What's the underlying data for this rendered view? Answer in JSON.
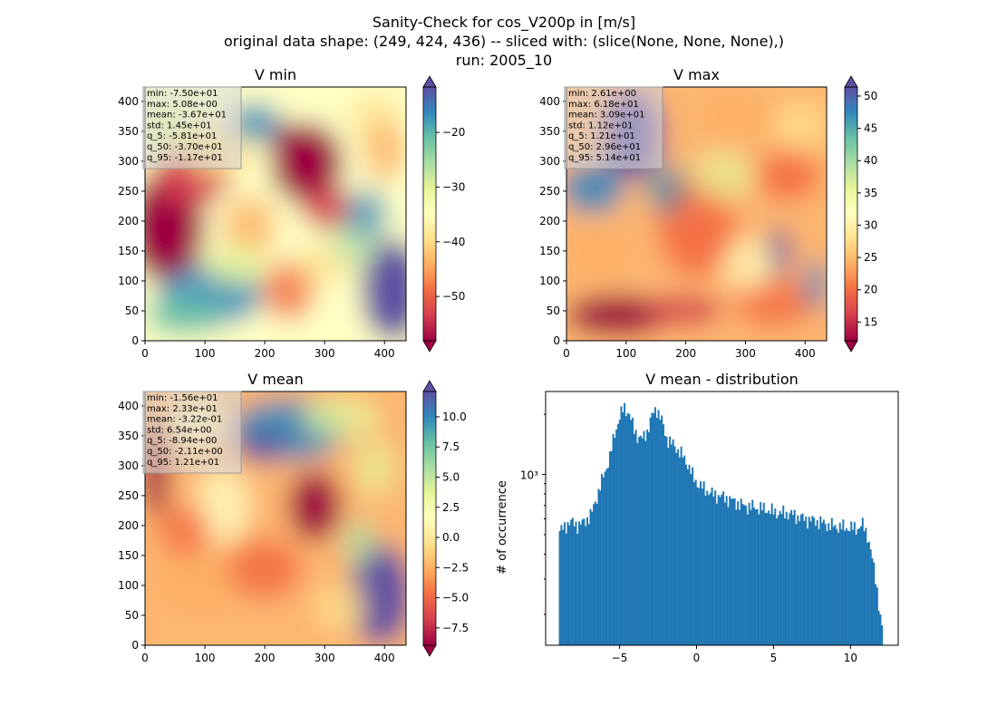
{
  "suptitle": [
    "Sanity-Check for cos_V200p in [m/s]",
    "original data shape: (249, 424, 436) -- sliced with: (slice(None, None, None),)",
    "run: 2005_10"
  ],
  "colormap": [
    "#9e0142",
    "#d53e4f",
    "#f46d43",
    "#fdae61",
    "#fee08b",
    "#ffffbf",
    "#e6f598",
    "#abdda4",
    "#66c2a5",
    "#3288bd",
    "#5e4fa2"
  ],
  "bar_color": "#1f77b4",
  "chart_data": [
    {
      "type": "heatmap",
      "title": "V min",
      "x_ticks": [
        0,
        100,
        200,
        300,
        400
      ],
      "y_ticks": [
        0,
        50,
        100,
        150,
        200,
        250,
        300,
        350,
        400
      ],
      "xlim": [
        0,
        436
      ],
      "ylim": [
        0,
        424
      ],
      "colorbar": {
        "range": [
          -58.1,
          -11.7
        ],
        "ticks": [
          -50,
          -40,
          -30,
          -20
        ],
        "tick_labels": [
          "−50",
          "−40",
          "−30",
          "−20"
        ],
        "extend": "both"
      },
      "stats": [
        "min: -7.50e+01",
        "max: 5.08e+00",
        "mean: -3.67e+01",
        "std: 1.45e+01",
        "q_5: -5.81e+01",
        "q_50: -3.70e+01",
        "q_95: -1.17e+01"
      ]
    },
    {
      "type": "heatmap",
      "title": "V max",
      "x_ticks": [
        0,
        100,
        200,
        300,
        400
      ],
      "y_ticks": [
        0,
        50,
        100,
        150,
        200,
        250,
        300,
        350,
        400
      ],
      "xlim": [
        0,
        436
      ],
      "ylim": [
        0,
        424
      ],
      "colorbar": {
        "range": [
          12.1,
          51.4
        ],
        "ticks": [
          15,
          20,
          25,
          30,
          35,
          40,
          45,
          50
        ],
        "tick_labels": [
          "15",
          "20",
          "25",
          "30",
          "35",
          "40",
          "45",
          "50"
        ],
        "extend": "both"
      },
      "stats": [
        "min: 2.61e+00",
        "max: 6.18e+01",
        "mean: 3.09e+01",
        "std: 1.12e+01",
        "q_5: 1.21e+01",
        "q_50: 2.96e+01",
        "q_95: 5.14e+01"
      ]
    },
    {
      "type": "heatmap",
      "title": "V mean",
      "x_ticks": [
        0,
        100,
        200,
        300,
        400
      ],
      "y_ticks": [
        0,
        50,
        100,
        150,
        200,
        250,
        300,
        350,
        400
      ],
      "xlim": [
        0,
        436
      ],
      "ylim": [
        0,
        424
      ],
      "colorbar": {
        "range": [
          -8.94,
          12.1
        ],
        "ticks": [
          -7.5,
          -5.0,
          -2.5,
          0.0,
          2.5,
          5.0,
          7.5,
          10.0
        ],
        "tick_labels": [
          "−7.5",
          "−5.0",
          "−2.5",
          "0.0",
          "2.5",
          "5.0",
          "7.5",
          "10.0"
        ],
        "extend": "both"
      },
      "stats": [
        "min: -1.56e+01",
        "max: 2.33e+01",
        "mean: -3.22e-01",
        "std: 6.54e+00",
        "q_5: -8.94e+00",
        "q_50: -2.11e+00",
        "q_95: 1.21e+01"
      ]
    },
    {
      "type": "bar",
      "title": "V mean - distribution",
      "ylabel": "# of occurrence",
      "y_scale": "log",
      "xlim": [
        -9.8,
        13.1
      ],
      "ylim": [
        140,
        2600
      ],
      "x_ticks": [
        -5,
        0,
        5,
        10
      ],
      "x_tick_labels": [
        "−5",
        "0",
        "5",
        "10"
      ],
      "y_ticks": [
        1000
      ],
      "y_tick_labels": [
        "10³"
      ],
      "bin_range": [
        -8.94,
        12.1
      ],
      "profile": [
        [
          -8.9,
          520
        ],
        [
          -8.6,
          540
        ],
        [
          -8.3,
          580
        ],
        [
          -8.0,
          570
        ],
        [
          -7.7,
          560
        ],
        [
          -7.4,
          570
        ],
        [
          -7.1,
          600
        ],
        [
          -6.8,
          640
        ],
        [
          -6.5,
          760
        ],
        [
          -6.2,
          900
        ],
        [
          -5.9,
          1050
        ],
        [
          -5.6,
          1250
        ],
        [
          -5.3,
          1600
        ],
        [
          -5.0,
          1950
        ],
        [
          -4.7,
          2150
        ],
        [
          -4.4,
          2050
        ],
        [
          -4.1,
          1700
        ],
        [
          -3.8,
          1550
        ],
        [
          -3.5,
          1500
        ],
        [
          -3.2,
          1650
        ],
        [
          -2.9,
          1950
        ],
        [
          -2.6,
          2150
        ],
        [
          -2.3,
          1900
        ],
        [
          -2.0,
          1550
        ],
        [
          -1.7,
          1450
        ],
        [
          -1.4,
          1380
        ],
        [
          -1.1,
          1300
        ],
        [
          -0.8,
          1200
        ],
        [
          -0.5,
          1100
        ],
        [
          -0.2,
          960
        ],
        [
          0.2,
          880
        ],
        [
          0.6,
          840
        ],
        [
          1.0,
          800
        ],
        [
          1.5,
          780
        ],
        [
          2.0,
          760
        ],
        [
          2.5,
          730
        ],
        [
          3.0,
          700
        ],
        [
          3.5,
          690
        ],
        [
          4.0,
          680
        ],
        [
          4.5,
          670
        ],
        [
          5.0,
          650
        ],
        [
          5.5,
          640
        ],
        [
          6.0,
          640
        ],
        [
          6.5,
          620
        ],
        [
          7.0,
          600
        ],
        [
          7.5,
          590
        ],
        [
          8.0,
          580
        ],
        [
          8.5,
          560
        ],
        [
          9.0,
          550
        ],
        [
          9.5,
          545
        ],
        [
          10.0,
          540
        ],
        [
          10.5,
          540
        ],
        [
          10.8,
          560
        ],
        [
          11.1,
          500
        ],
        [
          11.4,
          380
        ],
        [
          11.7,
          280
        ],
        [
          11.9,
          200
        ],
        [
          12.1,
          160
        ]
      ]
    }
  ]
}
